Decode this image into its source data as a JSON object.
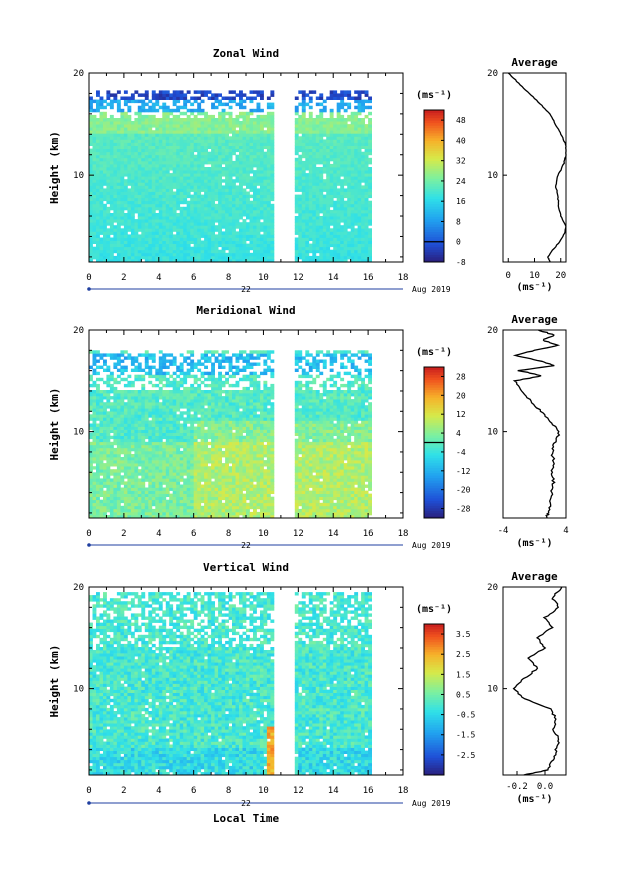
{
  "chart_data": {
    "type": "heatmap",
    "shared": {
      "xlabel": "Local Time",
      "ylabel": "Height (km)",
      "date_label": "22",
      "month_label": "Aug 2019",
      "xlim": [
        0,
        18
      ],
      "xticks": [
        "0",
        "2",
        "4",
        "6",
        "8",
        "10",
        "12",
        "14",
        "16",
        "18"
      ],
      "ylim": [
        1.5,
        20
      ],
      "yticks": [
        "10",
        "20"
      ],
      "data_gap_hours": [
        10.5,
        11.6
      ],
      "data_end_hour": 16,
      "colorbar_unit": "(ms⁻¹)",
      "average_title": "Average",
      "average_xlabel": "(ms⁻¹)"
    },
    "panels": [
      {
        "title": "Zonal Wind",
        "colorbar_ticks": [
          "48",
          "40",
          "32",
          "24",
          "16",
          "8",
          "0",
          "-8"
        ],
        "colorbar_range": [
          -8,
          52
        ],
        "colorbar_zero_line": 0,
        "average": {
          "xticks": [
            "0",
            "10",
            "20"
          ],
          "xlim": [
            -2,
            22
          ],
          "profile": [
            [
              1.5,
              16
            ],
            [
              2,
              15
            ],
            [
              3,
              18
            ],
            [
              4,
              21
            ],
            [
              5,
              22
            ],
            [
              6,
              20
            ],
            [
              7,
              19
            ],
            [
              8,
              19
            ],
            [
              9,
              18
            ],
            [
              10,
              19
            ],
            [
              11,
              21
            ],
            [
              12,
              22
            ],
            [
              13,
              22
            ],
            [
              14,
              20
            ],
            [
              15,
              18
            ],
            [
              16,
              16
            ],
            [
              17,
              12
            ],
            [
              18,
              8
            ],
            [
              19,
              4
            ],
            [
              20,
              0
            ]
          ]
        }
      },
      {
        "title": "Meridional Wind",
        "colorbar_ticks": [
          "28",
          "20",
          "12",
          "4",
          "-4",
          "-12",
          "-20",
          "-28"
        ],
        "colorbar_range": [
          -32,
          32
        ],
        "colorbar_zero_line": 0,
        "average": {
          "xticks": [
            "-4",
            "4"
          ],
          "xlim": [
            -4,
            4
          ],
          "profile": [
            [
              1.5,
              1.5
            ],
            [
              2,
              1.7
            ],
            [
              3,
              2.0
            ],
            [
              4,
              2.2
            ],
            [
              5,
              2.4
            ],
            [
              6,
              2.2
            ],
            [
              7,
              2.5
            ],
            [
              8,
              2.2
            ],
            [
              9,
              2.6
            ],
            [
              10,
              3.2
            ],
            [
              11,
              2.0
            ],
            [
              12,
              0.8
            ],
            [
              13,
              -0.5
            ],
            [
              14,
              -1.5
            ],
            [
              15,
              -2.5
            ],
            [
              15.5,
              1.0
            ],
            [
              16,
              -2.0
            ],
            [
              16.5,
              2.5
            ],
            [
              17,
              0.5
            ],
            [
              17.5,
              -2.5
            ],
            [
              18,
              0.0
            ],
            [
              18.5,
              3.0
            ],
            [
              19,
              1.0
            ],
            [
              19.5,
              2.5
            ],
            [
              20,
              0.5
            ]
          ]
        }
      },
      {
        "title": "Vertical Wind",
        "colorbar_ticks": [
          "3.5",
          "2.5",
          "1.5",
          "0.5",
          "-0.5",
          "-1.5",
          "-2.5"
        ],
        "colorbar_range": [
          -3.5,
          4.0
        ],
        "colorbar_zero_line": null,
        "average": {
          "xticks": [
            "-0.2",
            "0.0"
          ],
          "xlim": [
            -0.3,
            0.15
          ],
          "profile": [
            [
              1.5,
              -0.15
            ],
            [
              2,
              0.02
            ],
            [
              3,
              0.06
            ],
            [
              4,
              0.08
            ],
            [
              5,
              0.1
            ],
            [
              6,
              0.06
            ],
            [
              7,
              0.08
            ],
            [
              8,
              0.04
            ],
            [
              9,
              -0.15
            ],
            [
              10,
              -0.22
            ],
            [
              11,
              -0.15
            ],
            [
              12,
              -0.05
            ],
            [
              13,
              -0.12
            ],
            [
              14,
              0.0
            ],
            [
              15,
              -0.05
            ],
            [
              16,
              0.05
            ],
            [
              17,
              0.0
            ],
            [
              18,
              0.1
            ],
            [
              19,
              0.05
            ],
            [
              20,
              0.12
            ]
          ]
        }
      }
    ]
  }
}
